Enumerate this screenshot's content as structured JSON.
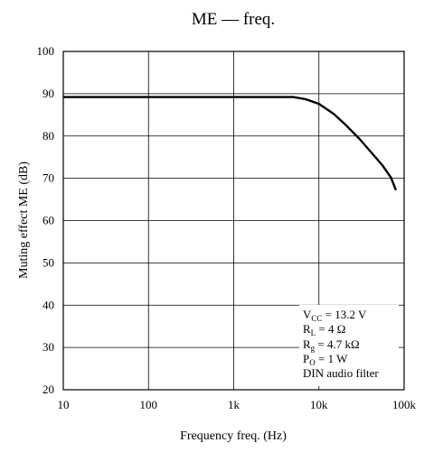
{
  "chart_data": {
    "type": "line",
    "title": "ME — freq.",
    "xlabel": "Frequency   freq. (Hz)",
    "ylabel": "Muting effect   ME (dB)",
    "x_scale": "log",
    "xlim": [
      10,
      100000
    ],
    "ylim": [
      20,
      100
    ],
    "grid": true,
    "x_tick_labels": [
      "10",
      "100",
      "1k",
      "10k",
      "100k"
    ],
    "x_tick_values": [
      10,
      100,
      1000,
      10000,
      100000
    ],
    "y_ticks": [
      20,
      30,
      40,
      50,
      60,
      70,
      80,
      90,
      100
    ],
    "series": [
      {
        "x": [
          10,
          100,
          1000,
          5000,
          7000,
          10000,
          15000,
          20000,
          30000,
          40000,
          55000,
          70000,
          80000
        ],
        "y": [
          89.2,
          89.2,
          89.2,
          89.2,
          88.7,
          87.6,
          85.2,
          82.9,
          79.3,
          76.4,
          73.2,
          70.2,
          67.2
        ]
      }
    ],
    "conditions": {
      "vcc": {
        "main": "V",
        "sub": "CC",
        "rest": " = 13.2 V"
      },
      "rl": {
        "main": "R",
        "sub": "L",
        "rest": " = 4 Ω"
      },
      "rg": {
        "main": "R",
        "sub": "g",
        "rest": " = 4.7 kΩ"
      },
      "po": {
        "main": "P",
        "sub": "O",
        "rest": " = 1 W"
      },
      "filter": "DIN audio filter"
    }
  }
}
